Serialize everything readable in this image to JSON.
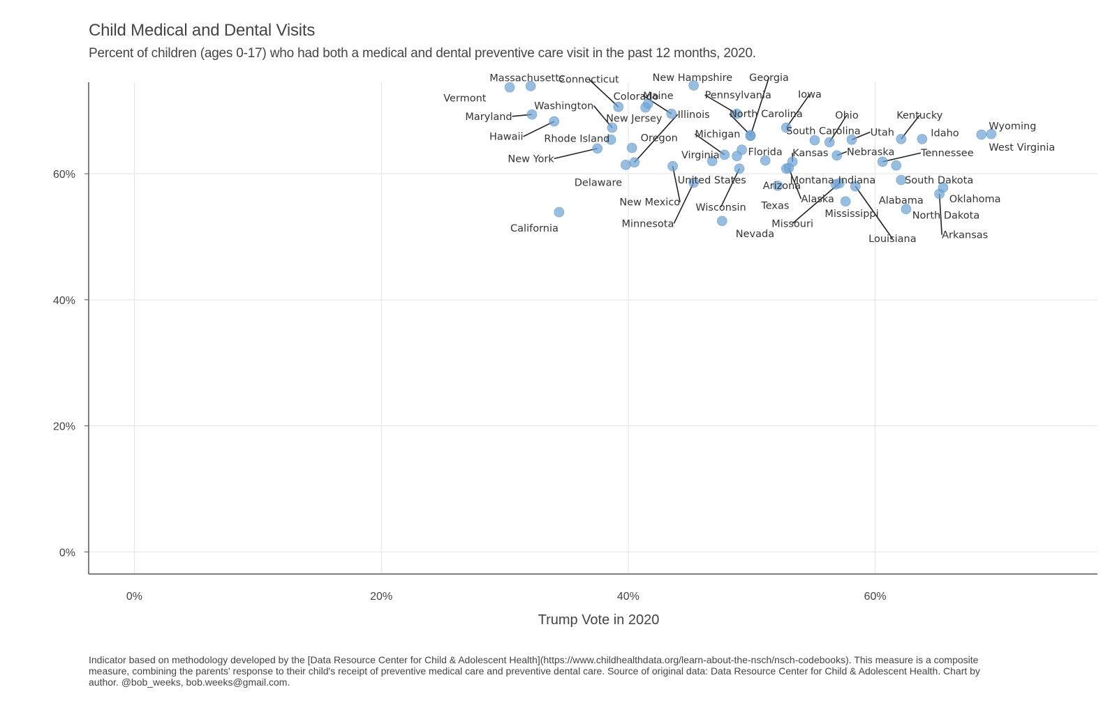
{
  "chart_data": {
    "type": "scatter",
    "title": "Child Medical and Dental Visits",
    "subtitle": "Percent of children (ages 0-17) who had both a medical and dental preventive care visit in the past 12 months, 2020.",
    "xlabel": "Trump Vote in 2020",
    "ylabel": "",
    "xlim": [
      -3.7,
      78
    ],
    "ylim": [
      -3.5,
      74.5
    ],
    "x_ticks": [
      0,
      20,
      40,
      60
    ],
    "y_ticks": [
      0,
      20,
      40,
      60
    ],
    "x_tick_labels": [
      "0%",
      "20%",
      "40%",
      "60%"
    ],
    "y_tick_labels": [
      "0%",
      "20%",
      "40%",
      "60%"
    ],
    "grid": true,
    "point_color": "#6fa3d6",
    "leader_color": "#222222",
    "caption": "Indicator based on methodology developed by the [Data Resource Center for Child & Adolescent Health](https://www.childhealthdata.org/learn-about-the-nsch/nsch-codebooks). This measure is a composite measure, combining the parents' response to their child's receipt of preventive medical care and preventive dental care. Source of original data: Data Resource Center for Child & Adolescent Health. Chart by author. @bob_weeks, bob.weeks@gmail.com.",
    "points": [
      {
        "label": "Massachusetts",
        "x": 32.1,
        "y": 73.9,
        "lx": 31.8,
        "ly": 75.2,
        "anchor": "middle"
      },
      {
        "label": "Vermont",
        "x": 30.4,
        "y": 73.7,
        "lx": 28.5,
        "ly": 72.0,
        "anchor": "end"
      },
      {
        "label": "Maryland",
        "x": 32.2,
        "y": 69.4,
        "lx": 30.6,
        "ly": 69.1,
        "anchor": "end",
        "leader": true
      },
      {
        "label": "Hawaii",
        "x": 34.0,
        "y": 68.3,
        "lx": 31.5,
        "ly": 65.9,
        "anchor": "end",
        "leader": true
      },
      {
        "label": "Connecticut",
        "x": 39.2,
        "y": 70.6,
        "lx": 36.8,
        "ly": 75.0,
        "anchor": "middle",
        "leader": true
      },
      {
        "label": "Colorado",
        "x": 41.6,
        "y": 71.1,
        "lx": 38.8,
        "ly": 72.3,
        "anchor": "start"
      },
      {
        "label": "Maine",
        "x": 43.5,
        "y": 69.5,
        "lx": 41.2,
        "ly": 72.4,
        "anchor": "start",
        "leader": true
      },
      {
        "label": "Washington",
        "x": 38.7,
        "y": 67.3,
        "lx": 37.2,
        "ly": 70.8,
        "anchor": "end",
        "leader": true
      },
      {
        "label": "New Jersey",
        "x": 41.4,
        "y": 70.5,
        "lx": 38.2,
        "ly": 68.8,
        "anchor": "start"
      },
      {
        "label": "Illinois",
        "x": 40.5,
        "y": 61.8,
        "lx": 44.0,
        "ly": 69.4,
        "anchor": "start",
        "leader": true
      },
      {
        "label": "Rhode Island",
        "x": 38.6,
        "y": 65.4,
        "lx": 38.5,
        "ly": 65.6,
        "anchor": "end"
      },
      {
        "label": "New York",
        "x": 37.5,
        "y": 64.0,
        "lx": 34.0,
        "ly": 62.4,
        "anchor": "end",
        "leader": true
      },
      {
        "label": "Oregon",
        "x": 40.3,
        "y": 64.1,
        "lx": 41.0,
        "ly": 65.7,
        "anchor": "start"
      },
      {
        "label": "Delaware",
        "x": 39.8,
        "y": 61.4,
        "lx": 39.5,
        "ly": 58.6,
        "anchor": "end"
      },
      {
        "label": "New Hampshire",
        "x": 45.3,
        "y": 74.0,
        "lx": 45.2,
        "ly": 75.3,
        "anchor": "middle"
      },
      {
        "label": "Pennsylvania",
        "x": 48.8,
        "y": 69.5,
        "lx": 46.2,
        "ly": 72.5,
        "anchor": "start",
        "leader": true
      },
      {
        "label": "Georgia",
        "x": 49.9,
        "y": 66.0,
        "lx": 51.4,
        "ly": 75.3,
        "anchor": "middle",
        "leader": true
      },
      {
        "label": "North Carolina",
        "x": 49.9,
        "y": 66.1,
        "lx": 48.2,
        "ly": 69.5,
        "anchor": "start",
        "leader": true
      },
      {
        "label": "Iowa",
        "x": 52.8,
        "y": 67.3,
        "lx": 54.7,
        "ly": 72.6,
        "anchor": "middle",
        "leader": true
      },
      {
        "label": "Michigan",
        "x": 47.8,
        "y": 63.0,
        "lx": 45.4,
        "ly": 66.3,
        "anchor": "start",
        "leader": true
      },
      {
        "label": "Virginia",
        "x": 46.8,
        "y": 62.0,
        "lx": 44.3,
        "ly": 63.0,
        "anchor": "start"
      },
      {
        "label": "Florida",
        "x": 49.2,
        "y": 63.8,
        "lx": 49.7,
        "ly": 63.5,
        "anchor": "start"
      },
      {
        "label": "United States",
        "x": 48.8,
        "y": 62.8,
        "lx": 44.0,
        "ly": 59.0,
        "anchor": "start"
      },
      {
        "label": "New Mexico",
        "x": 43.6,
        "y": 61.2,
        "lx": 44.2,
        "ly": 55.5,
        "anchor": "end",
        "leader": true
      },
      {
        "label": "Minnesota",
        "x": 45.3,
        "y": 58.6,
        "lx": 43.7,
        "ly": 52.1,
        "anchor": "end",
        "leader": true
      },
      {
        "label": "Wisconsin",
        "x": 49.0,
        "y": 60.8,
        "lx": 47.5,
        "ly": 54.7,
        "anchor": "middle",
        "leader": true
      },
      {
        "label": "Nevada",
        "x": 47.6,
        "y": 52.5,
        "lx": 48.7,
        "ly": 50.5,
        "anchor": "start"
      },
      {
        "label": "Arizona",
        "x": 51.1,
        "y": 62.1,
        "lx": 50.9,
        "ly": 58.1,
        "anchor": "start"
      },
      {
        "label": "Texas",
        "x": 52.1,
        "y": 58.1,
        "lx": 51.9,
        "ly": 55.0,
        "anchor": "middle"
      },
      {
        "label": "South Carolina",
        "x": 55.1,
        "y": 65.3,
        "lx": 52.8,
        "ly": 66.8,
        "anchor": "start"
      },
      {
        "label": "Ohio",
        "x": 56.3,
        "y": 65.0,
        "lx": 57.7,
        "ly": 69.3,
        "anchor": "middle",
        "leader": true
      },
      {
        "label": "Kansas",
        "x": 53.3,
        "y": 61.9,
        "lx": 53.3,
        "ly": 63.3,
        "anchor": "start",
        "leader": true
      },
      {
        "label": "Montana",
        "x": 52.8,
        "y": 60.8,
        "lx": 53.1,
        "ly": 59.0,
        "anchor": "start"
      },
      {
        "label": "Alaska",
        "x": 53.0,
        "y": 60.9,
        "lx": 54.0,
        "ly": 56.0,
        "anchor": "start",
        "leader": true
      },
      {
        "label": "Utah",
        "x": 58.1,
        "y": 65.4,
        "lx": 59.6,
        "ly": 66.6,
        "anchor": "start",
        "leader": true
      },
      {
        "label": "Nebraska",
        "x": 56.9,
        "y": 62.9,
        "lx": 57.7,
        "ly": 63.5,
        "anchor": "start",
        "leader": true
      },
      {
        "label": "Indiana",
        "x": 56.8,
        "y": 58.3,
        "lx": 57.0,
        "ly": 59.0,
        "anchor": "start"
      },
      {
        "label": "Missouri",
        "x": 57.1,
        "y": 58.5,
        "lx": 53.3,
        "ly": 52.1,
        "anchor": "middle",
        "leader": true
      },
      {
        "label": "Mississippi",
        "x": 57.6,
        "y": 55.6,
        "lx": 58.1,
        "ly": 53.7,
        "anchor": "middle"
      },
      {
        "label": "Louisiana",
        "x": 58.4,
        "y": 58.0,
        "lx": 61.4,
        "ly": 49.7,
        "anchor": "middle",
        "leader": true
      },
      {
        "label": "Kentucky",
        "x": 62.1,
        "y": 65.5,
        "lx": 63.6,
        "ly": 69.3,
        "anchor": "middle",
        "leader": true
      },
      {
        "label": "Idaho",
        "x": 63.8,
        "y": 65.5,
        "lx": 64.5,
        "ly": 66.5,
        "anchor": "start"
      },
      {
        "label": "Tennessee",
        "x": 60.6,
        "y": 61.9,
        "lx": 63.7,
        "ly": 63.3,
        "anchor": "start",
        "leader": true
      },
      {
        "label": "South Dakota",
        "x": 61.7,
        "y": 61.3,
        "lx": 62.4,
        "ly": 59.0,
        "anchor": "start"
      },
      {
        "label": "Alabama",
        "x": 62.1,
        "y": 59.0,
        "lx": 62.1,
        "ly": 55.8,
        "anchor": "middle"
      },
      {
        "label": "Oklahoma",
        "x": 65.5,
        "y": 57.8,
        "lx": 66.0,
        "ly": 56.0,
        "anchor": "start"
      },
      {
        "label": "Arkansas",
        "x": 65.2,
        "y": 56.8,
        "lx": 65.4,
        "ly": 50.3,
        "anchor": "start",
        "leader": true
      },
      {
        "label": "North Dakota",
        "x": 62.5,
        "y": 54.4,
        "lx": 63.0,
        "ly": 53.4,
        "anchor": "start"
      },
      {
        "label": "Wyoming",
        "x": 68.6,
        "y": 66.2,
        "lx": 69.2,
        "ly": 67.6,
        "anchor": "start"
      },
      {
        "label": "West Virginia",
        "x": 69.4,
        "y": 66.3,
        "lx": 69.2,
        "ly": 64.2,
        "anchor": "start"
      },
      {
        "label": "California",
        "x": 34.4,
        "y": 53.9,
        "lx": 32.4,
        "ly": 51.4,
        "anchor": "middle"
      }
    ]
  }
}
